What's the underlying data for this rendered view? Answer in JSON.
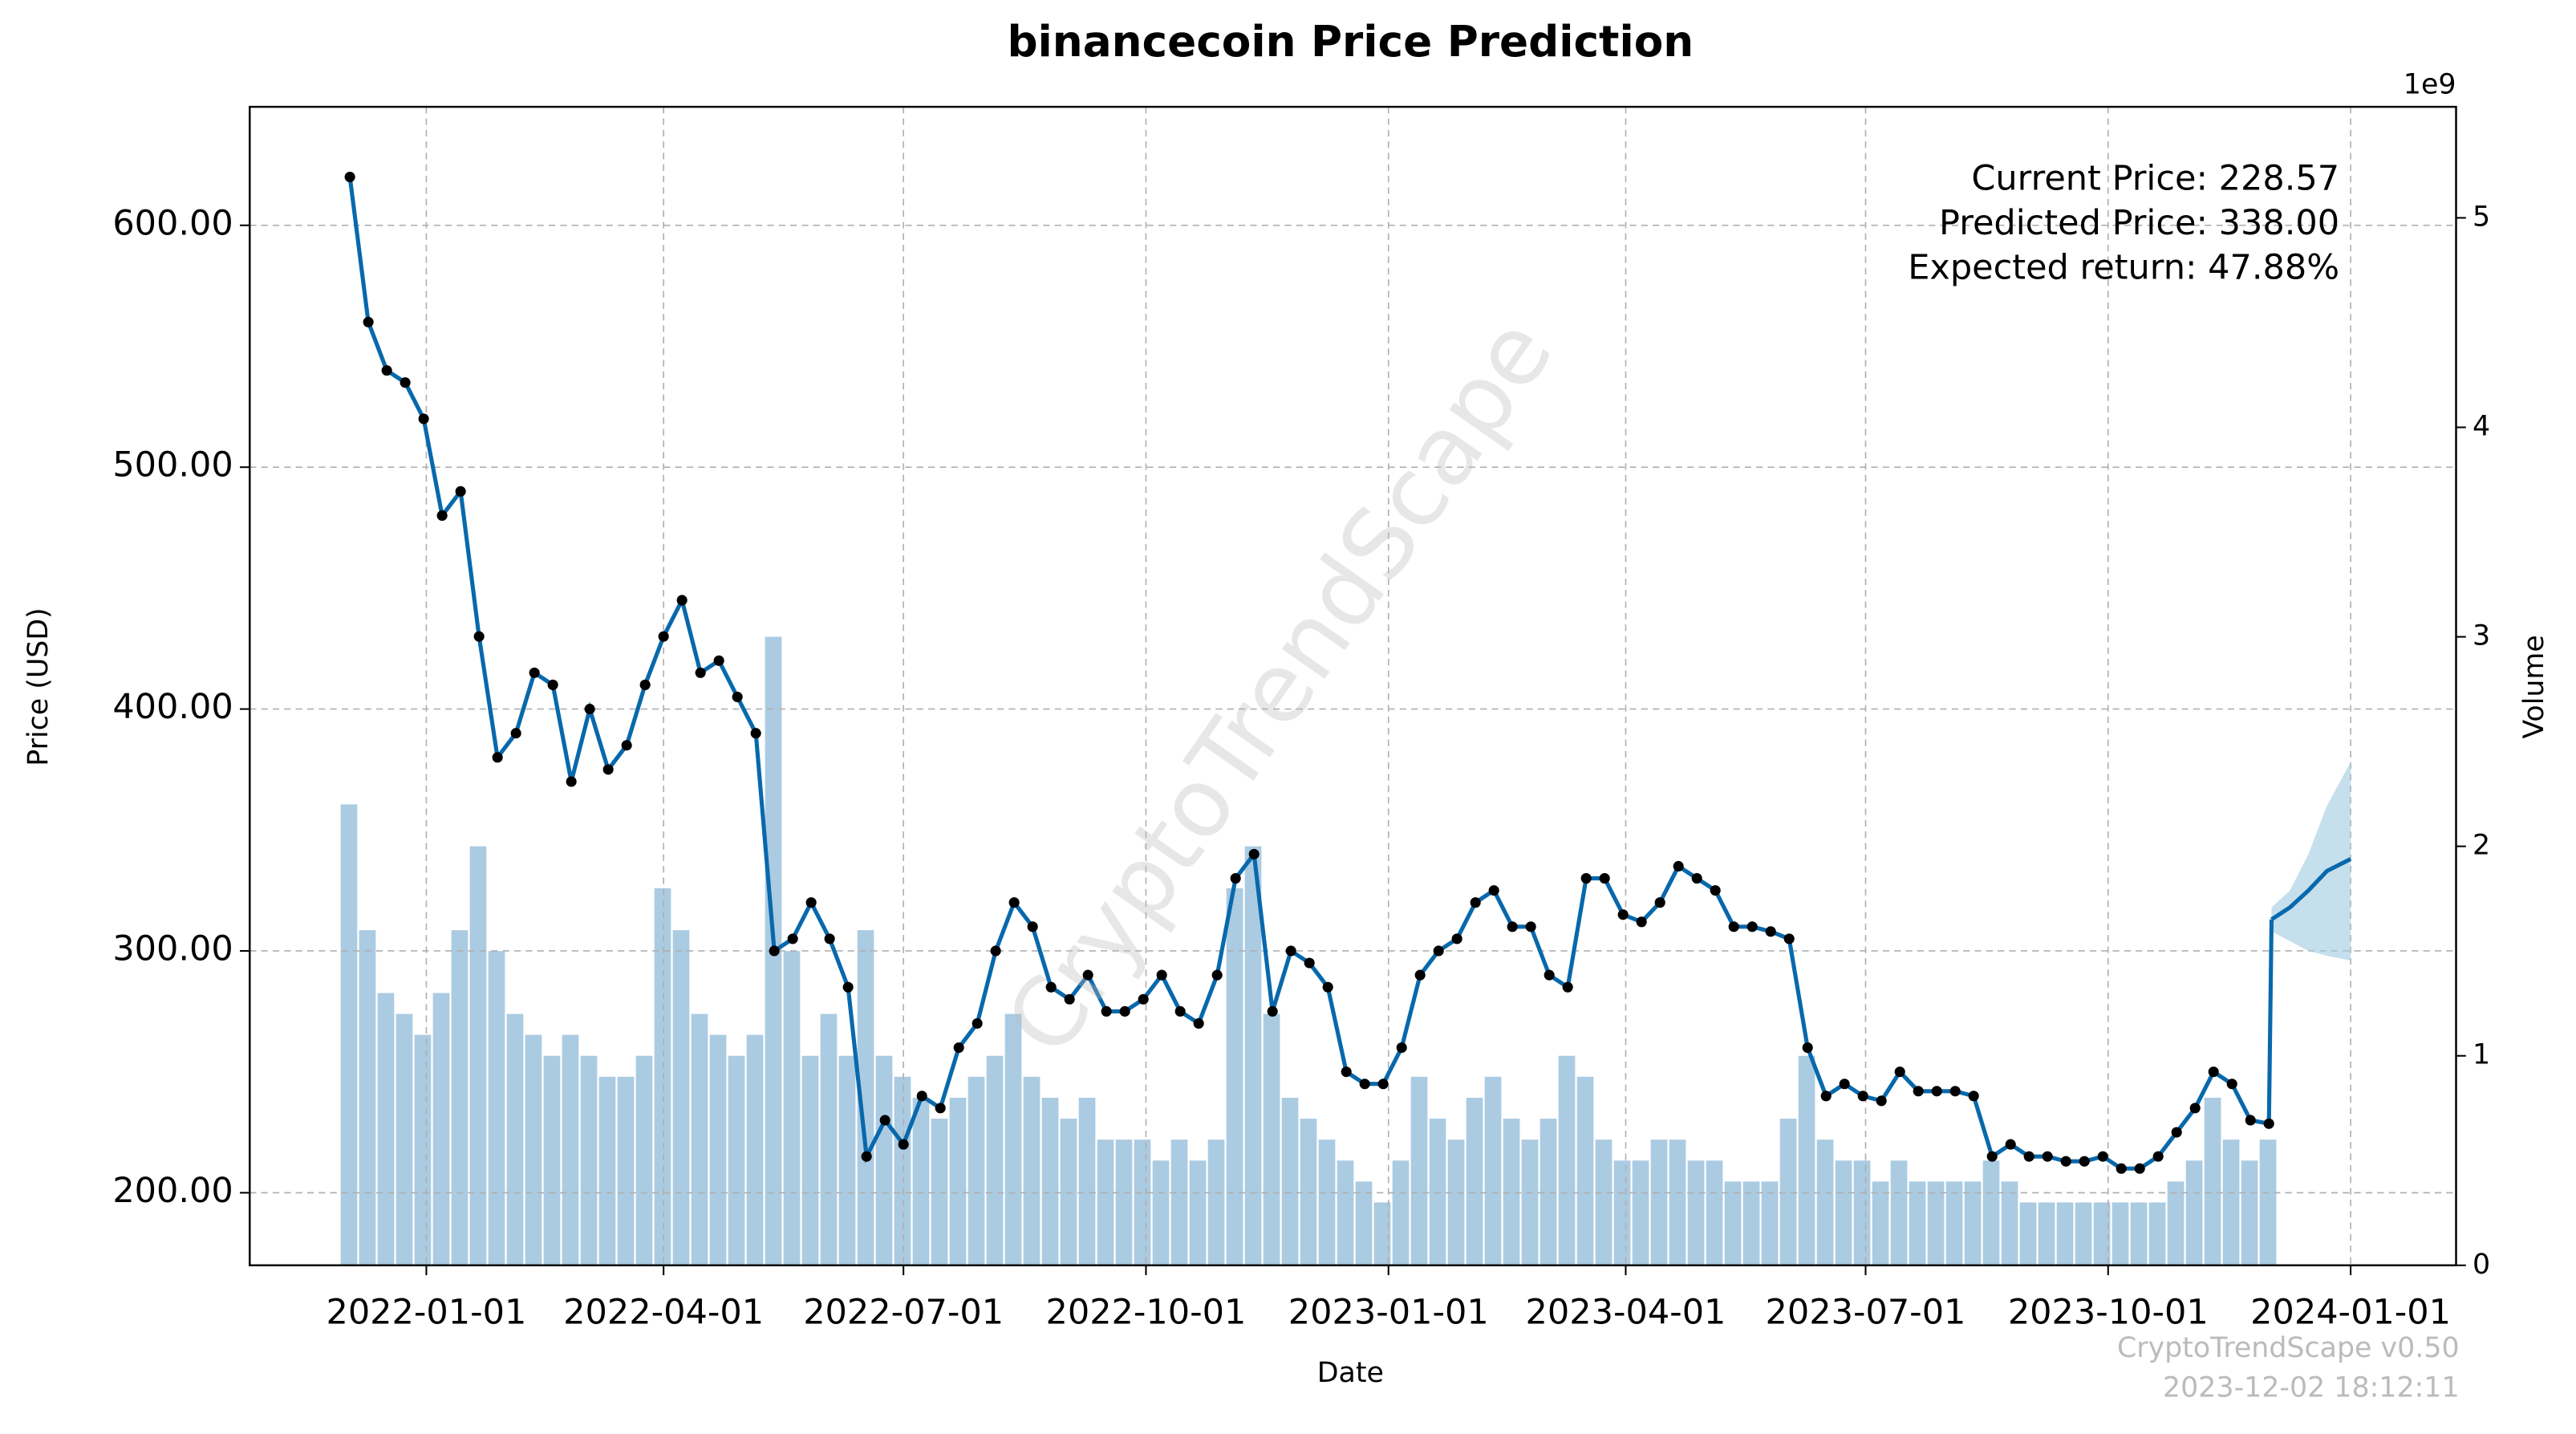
{
  "chart_data": {
    "type": "forecast",
    "title": "binancecoin Price Prediction",
    "x_label": "Date",
    "y_label": "Price (USD)",
    "y2_label": "Volume",
    "y2_offset_label": "1e9",
    "annotations": [
      "Current Price: 228.57",
      "Predicted Price: 338.00",
      "Expected return: 47.88%"
    ],
    "watermark": "CryptoTrendScape",
    "footer": [
      "CryptoTrendScape v0.50",
      "2023-12-02 18:12:11"
    ],
    "xlim": [
      "2021-10-26",
      "2024-02-10"
    ],
    "xticks": [
      "2022-01-01",
      "2022-04-01",
      "2022-07-01",
      "2022-10-01",
      "2023-01-01",
      "2023-04-01",
      "2023-07-01",
      "2023-10-01",
      "2024-01-01"
    ],
    "ylim": [
      170,
      649
    ],
    "yticks": [
      {
        "value": 200,
        "label": "200.00"
      },
      {
        "value": 300,
        "label": "300.00"
      },
      {
        "value": 400,
        "label": "400.00"
      },
      {
        "value": 500,
        "label": "500.00"
      },
      {
        "value": 600,
        "label": "600.00"
      }
    ],
    "y2lim": [
      0,
      5.53
    ],
    "y2ticks": [
      0,
      1,
      2,
      3,
      4,
      5
    ],
    "grid": true,
    "x": [
      "2021-12-03",
      "2021-12-10",
      "2021-12-17",
      "2021-12-24",
      "2021-12-31",
      "2022-01-07",
      "2022-01-14",
      "2022-01-21",
      "2022-01-28",
      "2022-02-04",
      "2022-02-11",
      "2022-02-18",
      "2022-02-25",
      "2022-03-04",
      "2022-03-11",
      "2022-03-18",
      "2022-03-25",
      "2022-04-01",
      "2022-04-08",
      "2022-04-15",
      "2022-04-22",
      "2022-04-29",
      "2022-05-06",
      "2022-05-13",
      "2022-05-20",
      "2022-05-27",
      "2022-06-03",
      "2022-06-10",
      "2022-06-17",
      "2022-06-24",
      "2022-07-01",
      "2022-07-08",
      "2022-07-15",
      "2022-07-22",
      "2022-07-29",
      "2022-08-05",
      "2022-08-12",
      "2022-08-19",
      "2022-08-26",
      "2022-09-02",
      "2022-09-09",
      "2022-09-16",
      "2022-09-23",
      "2022-09-30",
      "2022-10-07",
      "2022-10-14",
      "2022-10-21",
      "2022-10-28",
      "2022-11-04",
      "2022-11-11",
      "2022-11-18",
      "2022-11-25",
      "2022-12-02",
      "2022-12-09",
      "2022-12-16",
      "2022-12-23",
      "2022-12-30",
      "2023-01-06",
      "2023-01-13",
      "2023-01-20",
      "2023-01-27",
      "2023-02-03",
      "2023-02-10",
      "2023-02-17",
      "2023-02-24",
      "2023-03-03",
      "2023-03-10",
      "2023-03-17",
      "2023-03-24",
      "2023-03-31",
      "2023-04-07",
      "2023-04-14",
      "2023-04-21",
      "2023-04-28",
      "2023-05-05",
      "2023-05-12",
      "2023-05-19",
      "2023-05-26",
      "2023-06-02",
      "2023-06-09",
      "2023-06-16",
      "2023-06-23",
      "2023-06-30",
      "2023-07-07",
      "2023-07-14",
      "2023-07-21",
      "2023-07-28",
      "2023-08-04",
      "2023-08-11",
      "2023-08-18",
      "2023-08-25",
      "2023-09-01",
      "2023-09-08",
      "2023-09-15",
      "2023-09-22",
      "2023-09-29",
      "2023-10-06",
      "2023-10-13",
      "2023-10-20",
      "2023-10-27",
      "2023-11-03",
      "2023-11-10",
      "2023-11-17",
      "2023-11-24",
      "2023-12-01"
    ],
    "price": {
      "color": "#0868ac",
      "dot_color": "#000000",
      "values": [
        620,
        560,
        540,
        535,
        520,
        480,
        490,
        430,
        380,
        390,
        415,
        410,
        370,
        400,
        375,
        385,
        410,
        430,
        445,
        415,
        420,
        405,
        390,
        300,
        305,
        320,
        305,
        285,
        215,
        230,
        220,
        240,
        235,
        260,
        270,
        300,
        320,
        310,
        285,
        280,
        290,
        275,
        275,
        280,
        290,
        275,
        270,
        290,
        330,
        340,
        275,
        300,
        295,
        285,
        250,
        245,
        245,
        260,
        290,
        300,
        305,
        320,
        325,
        310,
        310,
        290,
        285,
        330,
        330,
        315,
        312,
        320,
        335,
        330,
        325,
        310,
        310,
        308,
        305,
        260,
        240,
        245,
        240,
        238,
        250,
        242,
        242,
        242,
        240,
        215,
        220,
        215,
        215,
        213,
        213,
        215,
        210,
        210,
        215,
        225,
        235,
        250,
        245,
        230,
        228.57
      ]
    },
    "volume": {
      "color": "#a6c8e0",
      "values": [
        2.2,
        1.6,
        1.3,
        1.2,
        1.1,
        1.3,
        1.6,
        2.0,
        1.5,
        1.2,
        1.1,
        1.0,
        1.1,
        1.0,
        0.9,
        0.9,
        1.0,
        1.8,
        1.6,
        1.2,
        1.1,
        1.0,
        1.1,
        3.0,
        1.5,
        1.0,
        1.2,
        1.0,
        1.6,
        1.0,
        0.9,
        0.8,
        0.7,
        0.8,
        0.9,
        1.0,
        1.2,
        0.9,
        0.8,
        0.7,
        0.8,
        0.6,
        0.6,
        0.6,
        0.5,
        0.6,
        0.5,
        0.6,
        1.8,
        2.0,
        1.2,
        0.8,
        0.7,
        0.6,
        0.5,
        0.4,
        0.3,
        0.5,
        0.9,
        0.7,
        0.6,
        0.8,
        0.9,
        0.7,
        0.6,
        0.7,
        1.0,
        0.9,
        0.6,
        0.5,
        0.5,
        0.6,
        0.6,
        0.5,
        0.5,
        0.4,
        0.4,
        0.4,
        0.7,
        1.0,
        0.6,
        0.5,
        0.5,
        0.4,
        0.5,
        0.4,
        0.4,
        0.4,
        0.4,
        0.5,
        0.4,
        0.3,
        0.3,
        0.3,
        0.3,
        0.3,
        0.3,
        0.3,
        0.3,
        0.4,
        0.5,
        0.8,
        0.6,
        0.5,
        0.6
      ]
    },
    "forecast": {
      "color": "#0868ac",
      "band_color": "#9ecae1",
      "x": [
        "2023-12-02",
        "2023-12-09",
        "2023-12-16",
        "2023-12-23",
        "2024-01-01"
      ],
      "values": [
        313,
        318,
        325,
        333,
        338
      ],
      "lower": [
        308,
        304,
        300,
        298,
        296
      ],
      "upper": [
        318,
        325,
        340,
        360,
        378
      ]
    }
  }
}
